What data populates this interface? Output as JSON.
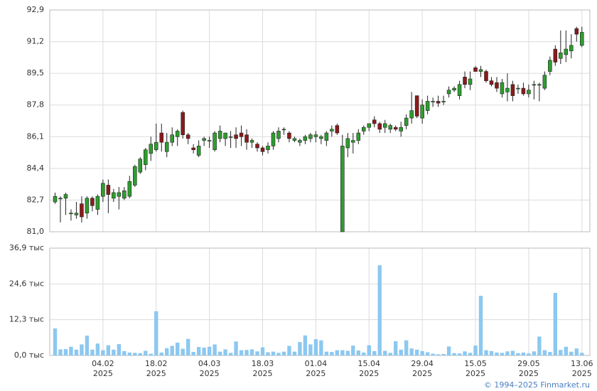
{
  "chart_data": [
    {
      "type": "candlestick",
      "open": [
        82.6,
        82.8,
        82.8,
        82.0,
        81.9,
        82.5,
        82.0,
        82.8,
        82.2,
        82.9,
        83.5,
        82.8,
        82.9,
        82.8,
        82.9,
        83.5,
        84.2,
        84.6,
        85.2,
        85.4,
        86.3,
        85.3,
        85.8,
        86.1,
        87.4,
        86.2,
        85.5,
        85.1,
        85.9,
        85.9,
        85.4,
        86.0,
        86.0,
        86.1,
        86.2,
        86.3,
        86.2,
        85.8,
        85.7,
        85.5,
        85.4,
        85.6,
        86.0,
        86.5,
        86.3,
        85.9,
        85.8,
        85.9,
        86.0,
        86.1,
        86.0,
        85.9,
        86.4,
        86.7,
        81.0,
        85.5,
        85.8,
        85.9,
        86.4,
        86.6,
        87.0,
        86.8,
        86.6,
        86.5,
        86.6,
        86.4,
        86.7,
        87.1,
        88.3,
        87.1,
        87.5,
        88.0,
        88.0,
        88.0,
        88.4,
        88.6,
        88.3,
        89.3,
        88.9,
        89.8,
        89.6,
        89.6,
        89.1,
        89.0,
        88.4,
        88.5,
        88.9,
        88.7,
        88.7,
        88.4,
        88.9,
        88.9,
        88.7,
        89.6,
        90.8,
        90.3,
        90.5,
        90.7,
        91.9,
        91.0
      ],
      "high": [
        83.1,
        82.9,
        83.1,
        82.2,
        82.6,
        82.9,
        82.9,
        82.9,
        83.0,
        83.8,
        83.8,
        83.3,
        83.4,
        83.4,
        84.0,
        84.6,
        85.0,
        85.5,
        86.1,
        86.8,
        86.8,
        86.3,
        86.6,
        86.5,
        87.5,
        86.3,
        85.7,
        85.9,
        86.1,
        86.1,
        86.4,
        86.7,
        86.3,
        86.4,
        86.6,
        86.7,
        86.5,
        86.0,
        85.8,
        85.6,
        85.8,
        86.4,
        86.6,
        86.6,
        86.4,
        86.1,
        86.0,
        86.2,
        86.3,
        86.4,
        86.2,
        86.4,
        86.7,
        86.8,
        86.2,
        86.3,
        86.3,
        86.5,
        86.7,
        86.8,
        87.2,
        86.9,
        87.0,
        86.8,
        86.7,
        86.9,
        87.3,
        88.5,
        88.3,
        88.1,
        88.3,
        88.2,
        88.3,
        88.3,
        88.8,
        88.8,
        89.1,
        89.6,
        89.6,
        89.9,
        89.9,
        89.7,
        89.3,
        89.3,
        89.2,
        89.5,
        89.1,
        88.9,
        89.0,
        88.9,
        89.1,
        89.0,
        89.6,
        90.4,
        91.0,
        91.8,
        91.8,
        91.6,
        92.0,
        92.0
      ],
      "low": [
        82.5,
        81.5,
        81.9,
        81.6,
        81.7,
        81.5,
        81.7,
        82.1,
        81.9,
        82.6,
        82.0,
        82.6,
        82.2,
        82.7,
        82.8,
        83.4,
        84.1,
        84.3,
        84.8,
        85.3,
        85.3,
        85.0,
        85.6,
        85.6,
        86.0,
        85.7,
        85.2,
        85.0,
        85.6,
        85.5,
        85.3,
        85.8,
        85.6,
        85.5,
        85.5,
        85.6,
        85.4,
        85.5,
        85.3,
        85.1,
        85.2,
        85.4,
        85.8,
        86.2,
        85.8,
        85.8,
        85.6,
        85.7,
        85.8,
        85.8,
        85.7,
        85.6,
        86.1,
        86.2,
        81.0,
        85.0,
        85.2,
        85.7,
        86.2,
        86.4,
        86.6,
        86.3,
        86.3,
        86.3,
        86.4,
        86.1,
        86.5,
        86.8,
        87.1,
        86.8,
        87.3,
        87.7,
        87.7,
        87.8,
        88.2,
        88.5,
        88.1,
        88.7,
        88.6,
        89.6,
        89.3,
        89.0,
        88.8,
        88.5,
        88.2,
        88.0,
        88.0,
        88.4,
        88.3,
        88.2,
        88.1,
        88.0,
        88.6,
        89.4,
        89.9,
        90.0,
        90.1,
        90.3,
        91.2,
        90.9
      ],
      "close": [
        82.9,
        82.8,
        83.0,
        82.0,
        82.0,
        81.8,
        82.8,
        82.4,
        82.9,
        83.6,
        83.0,
        83.1,
        83.1,
        83.2,
        83.7,
        84.5,
        84.9,
        85.4,
        85.7,
        85.8,
        85.8,
        85.8,
        86.2,
        86.4,
        86.2,
        86.0,
        85.4,
        85.6,
        86.0,
        85.9,
        86.3,
        86.4,
        86.3,
        86.1,
        86.0,
        86.1,
        85.8,
        85.9,
        85.5,
        85.3,
        85.6,
        86.3,
        86.4,
        86.5,
        86.0,
        86.0,
        85.9,
        86.1,
        86.2,
        86.2,
        86.1,
        86.3,
        86.5,
        86.3,
        85.6,
        86.0,
        85.9,
        86.3,
        86.6,
        86.8,
        86.8,
        86.5,
        86.8,
        86.7,
        86.5,
        86.6,
        87.1,
        87.5,
        87.2,
        87.8,
        88.0,
        88.0,
        87.9,
        88.0,
        88.6,
        88.7,
        88.9,
        88.9,
        89.2,
        89.6,
        89.7,
        89.1,
        88.9,
        88.7,
        89.0,
        88.7,
        88.3,
        88.7,
        88.4,
        88.6,
        88.9,
        88.9,
        89.4,
        90.2,
        90.1,
        90.6,
        90.8,
        91.0,
        91.6,
        91.7
      ],
      "up_color": "#2e9e2e",
      "down_color": "#8b1a1a",
      "xlim": [
        -1,
        100.5
      ],
      "xticks": [
        9,
        19,
        29,
        39,
        49,
        59,
        69,
        79,
        89,
        99
      ],
      "ylim": [
        81.0,
        92.9
      ],
      "yticks": [
        {
          "value": 81.0,
          "label": "81,0"
        },
        {
          "value": 82.7,
          "label": "82,7"
        },
        {
          "value": 84.4,
          "label": "84,4"
        },
        {
          "value": 86.1,
          "label": "86,1"
        },
        {
          "value": 87.8,
          "label": "87,8"
        },
        {
          "value": 89.5,
          "label": "89,5"
        },
        {
          "value": 91.2,
          "label": "91,2"
        },
        {
          "value": 92.9,
          "label": "92,9"
        }
      ],
      "grid": true
    },
    {
      "type": "bar",
      "values": [
        9.3,
        2.1,
        2.2,
        3.0,
        2.0,
        3.8,
        6.8,
        2.0,
        4.1,
        1.8,
        3.5,
        2.0,
        3.9,
        1.5,
        1.0,
        0.9,
        0.8,
        1.6,
        0.6,
        15.2,
        1.0,
        2.5,
        3.3,
        4.4,
        2.3,
        5.7,
        1.2,
        2.9,
        2.7,
        3.0,
        3.8,
        1.3,
        2.1,
        0.9,
        4.8,
        1.8,
        1.9,
        2.1,
        1.4,
        2.8,
        1.1,
        1.3,
        0.9,
        1.3,
        3.3,
        1.3,
        4.6,
        6.9,
        3.8,
        5.6,
        5.2,
        1.3,
        1.2,
        1.8,
        1.8,
        1.6,
        3.4,
        1.7,
        1.0,
        3.5,
        1.5,
        31.0,
        1.6,
        0.9,
        4.9,
        2.0,
        5.2,
        2.4,
        2.0,
        1.5,
        1.1,
        0.6,
        0.4,
        0.5,
        3.1,
        0.8,
        0.7,
        1.4,
        0.9,
        3.4,
        20.5,
        1.8,
        1.5,
        1.0,
        0.9,
        1.4,
        1.6,
        0.8,
        1.0,
        0.7,
        1.4,
        6.5,
        1.8,
        1.2,
        21.5,
        1.9,
        3.0,
        1.3,
        2.4,
        0.9
      ],
      "color": "#8cc8f0",
      "xlim": [
        -1,
        100.5
      ],
      "xticks": [
        {
          "value": 9,
          "label": [
            "04.02",
            "2025"
          ]
        },
        {
          "value": 19,
          "label": [
            "18.02",
            "2025"
          ]
        },
        {
          "value": 29,
          "label": [
            "04.03",
            "2025"
          ]
        },
        {
          "value": 39,
          "label": [
            "18.03",
            "2025"
          ]
        },
        {
          "value": 49,
          "label": [
            "01.04",
            "2025"
          ]
        },
        {
          "value": 59,
          "label": [
            "15.04",
            "2025"
          ]
        },
        {
          "value": 69,
          "label": [
            "29.04",
            "2025"
          ]
        },
        {
          "value": 79,
          "label": [
            "15.05",
            "2025"
          ]
        },
        {
          "value": 89,
          "label": [
            "29.05",
            "2025"
          ]
        },
        {
          "value": 99,
          "label": [
            "13.06",
            "2025"
          ]
        }
      ],
      "ylim": [
        0,
        36.9
      ],
      "yticks": [
        {
          "value": 0,
          "label": "0,0 тыс"
        },
        {
          "value": 12.3,
          "label": "12,3 тыс"
        },
        {
          "value": 24.6,
          "label": "24,6 тыс"
        },
        {
          "value": 36.9,
          "label": "36,9 тыс"
        }
      ],
      "grid": true
    }
  ],
  "footer": "© 1994–2025 Finmarket.ru"
}
